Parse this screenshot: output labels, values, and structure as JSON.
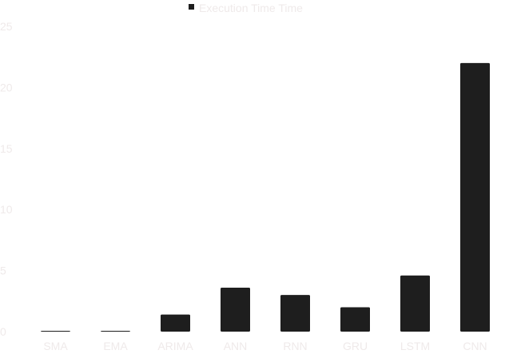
{
  "chart_data": {
    "type": "bar",
    "categories": [
      "SMA",
      "EMA",
      "ARIMA",
      "ANN",
      "RNN",
      "GRU",
      "LSTM",
      "CNN"
    ],
    "series": [
      {
        "name": "Execution Time Time",
        "values": [
          0.05,
          0.05,
          1.4,
          3.6,
          3.0,
          2.0,
          4.6,
          22.0
        ]
      }
    ],
    "ylim": [
      0,
      25
    ],
    "yticks": [
      0,
      5,
      10,
      15,
      20,
      25
    ],
    "legend": {
      "label": "Execution Time Time",
      "position": "top-center"
    },
    "grid": false,
    "bar_color": "#1e1e1e",
    "label_color": "#efeaea"
  }
}
